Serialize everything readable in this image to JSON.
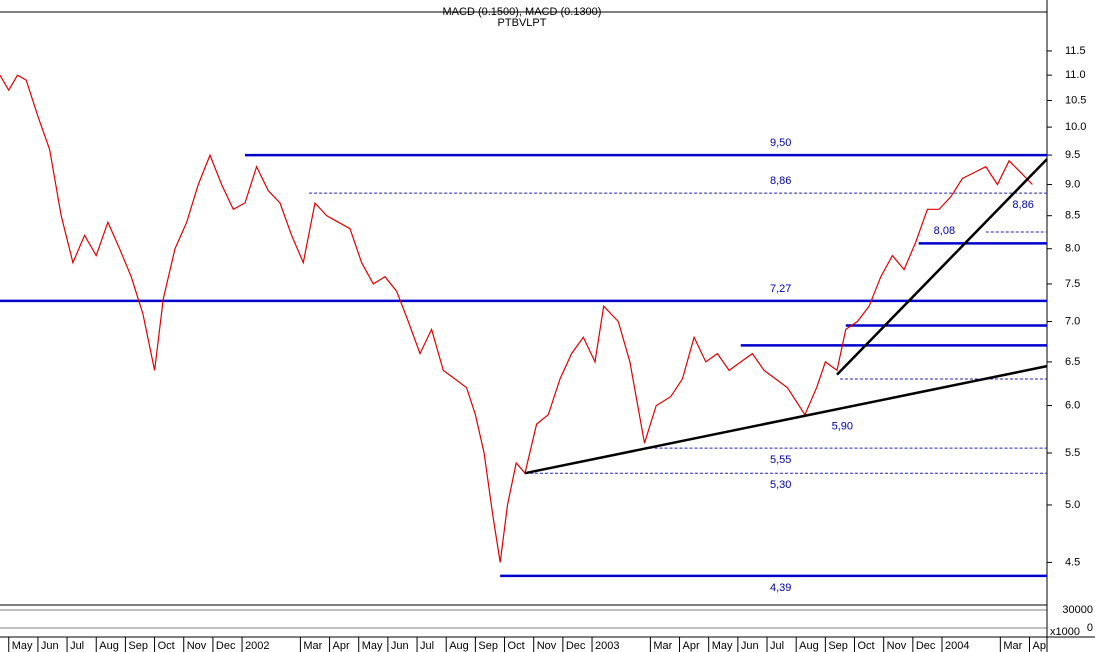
{
  "chart_data": {
    "type": "line",
    "title": "MACD (0.1500), MACD (0.1300)",
    "subtitle": "PTBVLPT",
    "log_scale": true,
    "color": "#e00000",
    "x": [
      0.7,
      1.0,
      1.3,
      1.6,
      2.0,
      2.4,
      2.8,
      3.2,
      3.6,
      4.0,
      4.4,
      4.8,
      5.2,
      5.6,
      6.0,
      6.3,
      6.7,
      7.1,
      7.5,
      7.9,
      8.3,
      8.7,
      9.1,
      9.5,
      9.9,
      10.3,
      10.7,
      11.1,
      11.5,
      11.9,
      12.3,
      12.7,
      13.1,
      13.5,
      13.9,
      14.3,
      14.7,
      15.1,
      15.5,
      15.9,
      16.3,
      16.7,
      17.0,
      17.3,
      17.6,
      17.85,
      18.1,
      18.4,
      18.7,
      19.1,
      19.5,
      19.9,
      20.3,
      20.7,
      21.1,
      21.4,
      21.9,
      22.3,
      22.8,
      23.2,
      23.7,
      24.1,
      24.5,
      24.9,
      25.3,
      25.7,
      26.1,
      26.5,
      26.9,
      27.3,
      27.7,
      28.3,
      28.7,
      29.0,
      29.4,
      29.7,
      30.1,
      30.5,
      30.9,
      31.3,
      31.7,
      32.1,
      32.5,
      32.9,
      33.3,
      33.7,
      34.1,
      34.5,
      34.9,
      35.3,
      35.7,
      36.1
    ],
    "values": [
      11.0,
      10.7,
      11.0,
      10.9,
      10.2,
      9.6,
      8.5,
      7.8,
      8.2,
      7.9,
      8.4,
      8.0,
      7.6,
      7.1,
      6.4,
      7.3,
      8.0,
      8.4,
      9.0,
      9.5,
      9.0,
      8.6,
      8.7,
      9.3,
      8.9,
      8.7,
      8.2,
      7.8,
      8.7,
      8.5,
      8.4,
      8.3,
      7.8,
      7.5,
      7.6,
      7.4,
      7.0,
      6.6,
      6.9,
      6.4,
      6.3,
      6.2,
      5.9,
      5.5,
      4.9,
      4.5,
      5.0,
      5.4,
      5.3,
      5.8,
      5.9,
      6.3,
      6.6,
      6.8,
      6.5,
      7.2,
      7.0,
      6.5,
      5.6,
      6.0,
      6.1,
      6.3,
      6.8,
      6.5,
      6.6,
      6.4,
      6.5,
      6.6,
      6.4,
      6.3,
      6.2,
      5.9,
      6.2,
      6.5,
      6.4,
      6.9,
      7.0,
      7.2,
      7.6,
      7.9,
      7.7,
      8.1,
      8.6,
      8.6,
      8.8,
      9.1,
      9.2,
      9.3,
      9.0,
      9.4,
      9.2,
      9.0
    ],
    "xlim": [
      0.7,
      36.6
    ],
    "xticks": [
      {
        "value": 1,
        "label": "May"
      },
      {
        "value": 2,
        "label": "Jun"
      },
      {
        "value": 3,
        "label": "Jul"
      },
      {
        "value": 4,
        "label": "Aug"
      },
      {
        "value": 5,
        "label": "Sep"
      },
      {
        "value": 6,
        "label": "Oct"
      },
      {
        "value": 7,
        "label": "Nov"
      },
      {
        "value": 8,
        "label": "Dec"
      },
      {
        "value": 9,
        "label": "2002"
      },
      {
        "value": 11,
        "label": "Mar"
      },
      {
        "value": 12,
        "label": "Apr"
      },
      {
        "value": 13,
        "label": "May"
      },
      {
        "value": 14,
        "label": "Jun"
      },
      {
        "value": 15,
        "label": "Jul"
      },
      {
        "value": 16,
        "label": "Aug"
      },
      {
        "value": 17,
        "label": "Sep"
      },
      {
        "value": 18,
        "label": "Oct"
      },
      {
        "value": 19,
        "label": "Nov"
      },
      {
        "value": 20,
        "label": "Dec"
      },
      {
        "value": 21,
        "label": "2003"
      },
      {
        "value": 23,
        "label": "Mar"
      },
      {
        "value": 24,
        "label": "Apr"
      },
      {
        "value": 25,
        "label": "May"
      },
      {
        "value": 26,
        "label": "Jun"
      },
      {
        "value": 27,
        "label": "Jul"
      },
      {
        "value": 28,
        "label": "Aug"
      },
      {
        "value": 29,
        "label": "Sep"
      },
      {
        "value": 30,
        "label": "Oct"
      },
      {
        "value": 31,
        "label": "Nov"
      },
      {
        "value": 32,
        "label": "Dec"
      },
      {
        "value": 33,
        "label": "2004"
      },
      {
        "value": 35,
        "label": "Mar"
      },
      {
        "value": 36,
        "label": "Ap"
      }
    ],
    "ylim": [
      4.2,
      11.95
    ],
    "yticks": [
      4.5,
      {
        "value": 5,
        "label": "5.0"
      },
      5.5,
      {
        "value": 6,
        "label": "6.0"
      },
      6.5,
      {
        "value": 7,
        "label": "7.0"
      },
      7.5,
      {
        "value": 8,
        "label": "8.0"
      },
      8.5,
      {
        "value": 9,
        "label": "9.0"
      },
      9.5,
      {
        "value": 10,
        "label": "10.0"
      },
      10.5,
      {
        "value": 11,
        "label": "11.0"
      },
      11.5
    ],
    "levels": [
      {
        "value": 9.5,
        "label": "9,50",
        "from": 9.1,
        "style": "solid"
      },
      {
        "value": 8.86,
        "label": "8,86",
        "from": 11.3,
        "style": "dashed"
      },
      {
        "value": 8.08,
        "label": "8,08",
        "from": 32.2,
        "style": "solid"
      },
      {
        "value": 7.27,
        "label": "7,27",
        "from": 0.7,
        "style": "solid"
      },
      {
        "value": 6.95,
        "from": 29.7,
        "style": "solid"
      },
      {
        "value": 6.7,
        "from": 26.1,
        "style": "solid"
      },
      {
        "value": 6.3,
        "from": 29.5,
        "style": "dashed"
      },
      {
        "value": 8.25,
        "from": 34.5,
        "style": "dashed"
      },
      {
        "value": 5.55,
        "label": "5,55",
        "from": 22.8,
        "style": "dashed"
      },
      {
        "value": 5.3,
        "label": "5,30",
        "from": 18.7,
        "style": "dashed"
      },
      {
        "value": 4.39,
        "label": "4,39",
        "from": 17.85,
        "style": "solid"
      }
    ],
    "annotations": [
      {
        "text": "5,90",
        "x": 29.9,
        "value": 5.9
      },
      {
        "text": "8,86",
        "x": 36.1,
        "value": 8.86
      }
    ],
    "trendlines": [
      {
        "x": [
          18.7,
          36.6
        ],
        "y": [
          5.3,
          6.45
        ]
      },
      {
        "x": [
          29.4,
          36.6
        ],
        "y": [
          6.35,
          9.43
        ]
      }
    ],
    "indicator_yticks": [
      30000,
      0
    ],
    "indicator_unit": "x1000"
  }
}
